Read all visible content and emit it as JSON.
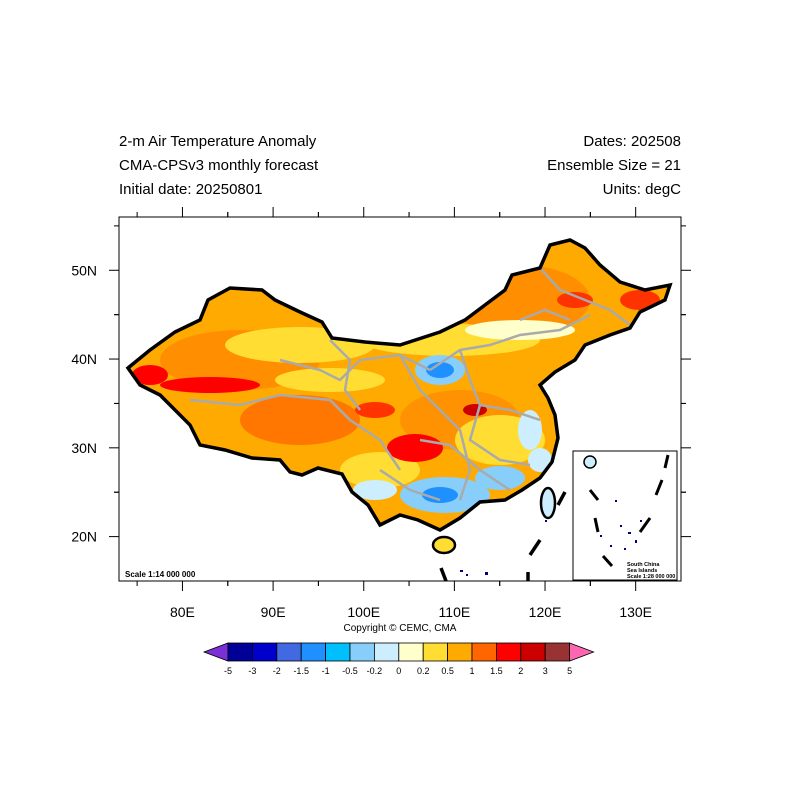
{
  "header": {
    "left": [
      "2-m Air Temperature Anomaly",
      "CMA-CPSv3 monthly forecast",
      "Initial date: 20250801"
    ],
    "right": [
      "Dates: 202508",
      "Ensemble Size = 21",
      "Units: degC"
    ]
  },
  "map": {
    "projection": "lat-lon",
    "lon_range": [
      73,
      135
    ],
    "lat_range": [
      15,
      56
    ],
    "lon_ticks": [
      "80E",
      "90E",
      "100E",
      "110E",
      "120E",
      "130E"
    ],
    "lat_ticks": [
      "20N",
      "30N",
      "40N",
      "50N"
    ],
    "scale_label": "Scale 1:14 000 000",
    "inset": {
      "lines": [
        "South China",
        "Sea Islands",
        "Scale 1:28 000 000"
      ]
    },
    "copyright": "Copyright © CEMC, CMA"
  },
  "legend": {
    "labels": [
      "-5",
      "-3",
      "-2",
      "-1.5",
      "-1",
      "-0.5",
      "-0.2",
      "0",
      "0.2",
      "0.5",
      "1",
      "1.5",
      "2",
      "3",
      "5"
    ],
    "colors": [
      "#7b2fd6",
      "#000099",
      "#0000cc",
      "#4169e1",
      "#1e90ff",
      "#00bfff",
      "#87cefa",
      "#cceeff",
      "#ffffcc",
      "#ffdd33",
      "#ffaa00",
      "#ff6600",
      "#ff0000",
      "#cc0000",
      "#993333",
      "#ff66b2"
    ]
  }
}
